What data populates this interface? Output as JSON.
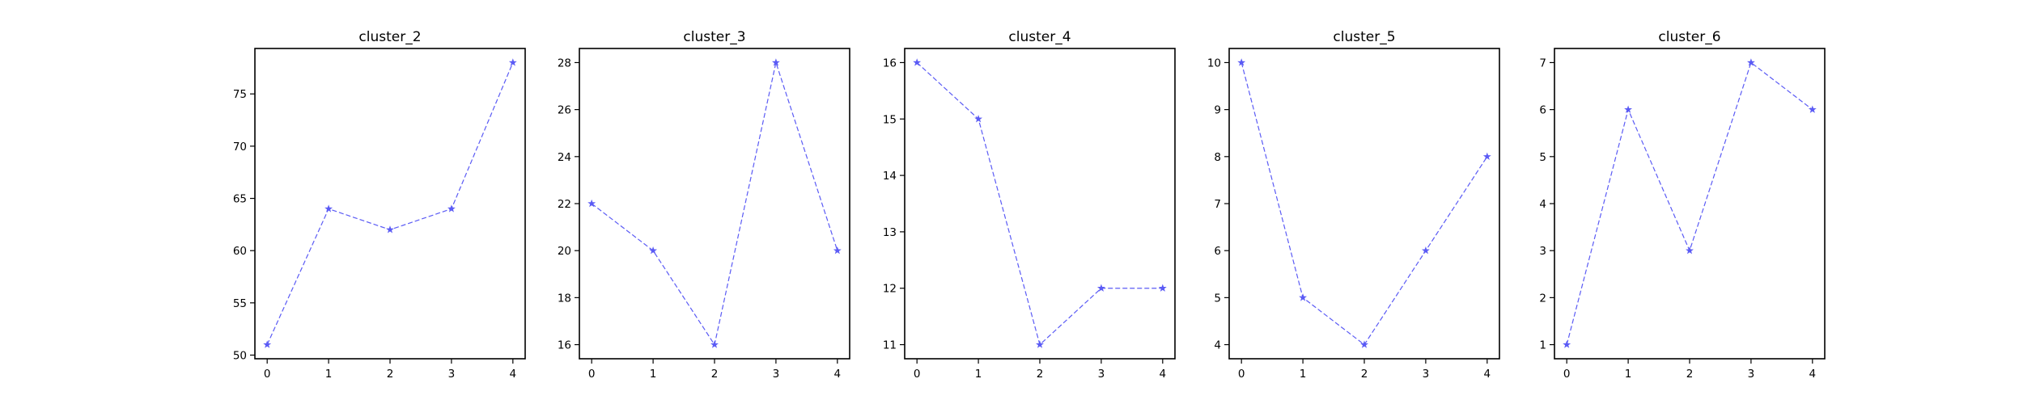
{
  "figure": {
    "background": "#ffffff",
    "series_color": "#5b5bf5"
  },
  "chart_data": [
    {
      "type": "line",
      "title": "cluster_2",
      "xlabel": "",
      "ylabel": "",
      "x": [
        0,
        1,
        2,
        3,
        4
      ],
      "values": [
        51,
        64,
        62,
        64,
        78
      ],
      "xlim": [
        -0.2,
        4.2
      ],
      "ylim": [
        49.65,
        79.35
      ],
      "xticks": [
        0,
        1,
        2,
        3,
        4
      ],
      "yticks": [
        50,
        55,
        60,
        65,
        70,
        75
      ],
      "line_style": "dashed",
      "marker": "star",
      "grid": false,
      "legend": "none"
    },
    {
      "type": "line",
      "title": "cluster_3",
      "xlabel": "",
      "ylabel": "",
      "x": [
        0,
        1,
        2,
        3,
        4
      ],
      "values": [
        22,
        20,
        16,
        28,
        20
      ],
      "xlim": [
        -0.2,
        4.2
      ],
      "ylim": [
        15.4,
        28.6
      ],
      "xticks": [
        0,
        1,
        2,
        3,
        4
      ],
      "yticks": [
        16,
        18,
        20,
        22,
        24,
        26,
        28
      ],
      "line_style": "dashed",
      "marker": "star",
      "grid": false,
      "legend": "none"
    },
    {
      "type": "line",
      "title": "cluster_4",
      "xlabel": "",
      "ylabel": "",
      "x": [
        0,
        1,
        2,
        3,
        4
      ],
      "values": [
        16,
        15,
        11,
        12,
        12
      ],
      "xlim": [
        -0.2,
        4.2
      ],
      "ylim": [
        10.75,
        16.25
      ],
      "xticks": [
        0,
        1,
        2,
        3,
        4
      ],
      "yticks": [
        11,
        12,
        13,
        14,
        15,
        16
      ],
      "line_style": "dashed",
      "marker": "star",
      "grid": false,
      "legend": "none"
    },
    {
      "type": "line",
      "title": "cluster_5",
      "xlabel": "",
      "ylabel": "",
      "x": [
        0,
        1,
        2,
        3,
        4
      ],
      "values": [
        10,
        5,
        4,
        6,
        8
      ],
      "xlim": [
        -0.2,
        4.2
      ],
      "ylim": [
        3.7,
        10.3
      ],
      "xticks": [
        0,
        1,
        2,
        3,
        4
      ],
      "yticks": [
        4,
        5,
        6,
        7,
        8,
        9,
        10
      ],
      "line_style": "dashed",
      "marker": "star",
      "grid": false,
      "legend": "none"
    },
    {
      "type": "line",
      "title": "cluster_6",
      "xlabel": "",
      "ylabel": "",
      "x": [
        0,
        1,
        2,
        3,
        4
      ],
      "values": [
        1,
        6,
        3,
        7,
        6
      ],
      "xlim": [
        -0.2,
        4.2
      ],
      "ylim": [
        0.7,
        7.3
      ],
      "xticks": [
        0,
        1,
        2,
        3,
        4
      ],
      "yticks": [
        1,
        2,
        3,
        4,
        5,
        6,
        7
      ],
      "line_style": "dashed",
      "marker": "star",
      "grid": false,
      "legend": "none"
    }
  ]
}
